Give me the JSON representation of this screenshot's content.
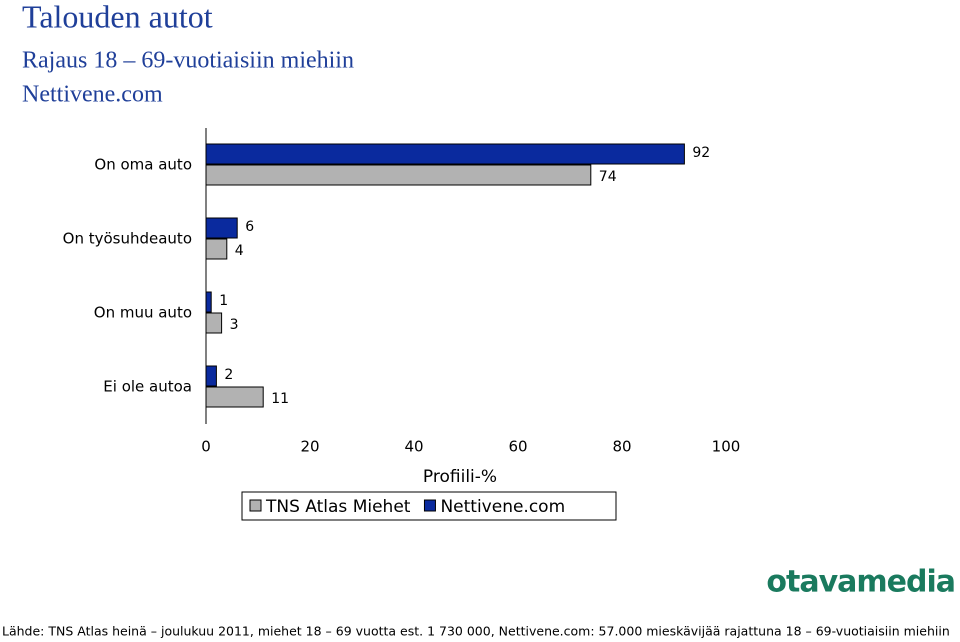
{
  "chart_data": {
    "type": "barh",
    "title": "Talouden autot",
    "subtitle": "Rajaus 18 – 69-vuotiaisiin miehiin",
    "subtitle2": "Nettivene.com",
    "categories": [
      "On oma auto",
      "On työsuhdeauto",
      "On muu auto",
      "Ei ole autoa"
    ],
    "series": [
      {
        "name": "TNS Atlas Miehet",
        "color": "#b2b2b2",
        "values": [
          74,
          4,
          3,
          11
        ]
      },
      {
        "name": "Nettivene.com",
        "color": "#0a2a9e",
        "values": [
          92,
          6,
          1,
          2
        ]
      }
    ],
    "xlim": [
      0,
      100
    ],
    "xticks": [
      0,
      20,
      40,
      60,
      80,
      100
    ],
    "x_label": "Profiili-%",
    "legend": "bottom",
    "logo": "otavamedia",
    "source": "Lähde: TNS Atlas heinä – joulukuu 2011, miehet 18 – 69 vuotta est. 1 730 000, Nettivene.com: 57.000 mieskävijää rajattuna 18 – 69-vuotiaisiin miehiin"
  }
}
